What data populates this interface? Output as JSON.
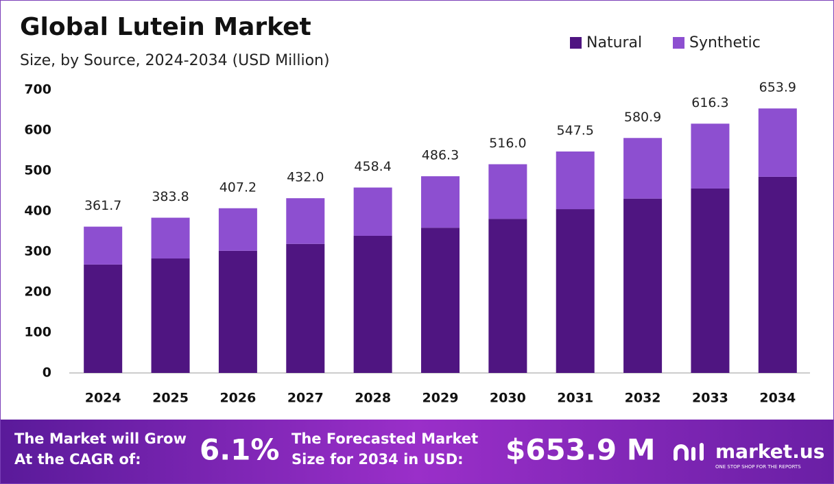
{
  "chart_data": {
    "type": "stacked_bar",
    "title": "Global Lutein Market",
    "subtitle": "Size, by Source, 2024-2034 (USD Million)",
    "categories": [
      "2024",
      "2025",
      "2026",
      "2027",
      "2028",
      "2029",
      "2030",
      "2031",
      "2032",
      "2033",
      "2034"
    ],
    "series": [
      {
        "name": "Natural",
        "color": "#4f1581",
        "values": [
          268,
          283,
          302,
          319,
          339,
          359,
          381,
          405,
          431,
          456,
          485
        ]
      },
      {
        "name": "Synthetic",
        "color": "#8d4fd0",
        "values": [
          93.7,
          100.8,
          105.2,
          113.0,
          119.4,
          127.3,
          135.0,
          142.5,
          149.9,
          160.3,
          168.9
        ]
      }
    ],
    "total_labels": [
      "361.7",
      "383.8",
      "407.2",
      "432.0",
      "458.4",
      "486.3",
      "516.0",
      "547.5",
      "580.9",
      "616.3",
      "653.9"
    ],
    "ylim": [
      0,
      700
    ],
    "yticks": [
      0,
      100,
      200,
      300,
      400,
      500,
      600,
      700
    ],
    "grid": false
  },
  "footer": {
    "cagr_text": "The Market will Grow At the CAGR of:",
    "cagr_value": "6.1%",
    "forecast_text": "The Forecasted Market Size for 2034 in USD:",
    "forecast_value": "$653.9 M",
    "brand": "market.us",
    "tagline": "ONE STOP SHOP FOR THE REPORTS"
  }
}
